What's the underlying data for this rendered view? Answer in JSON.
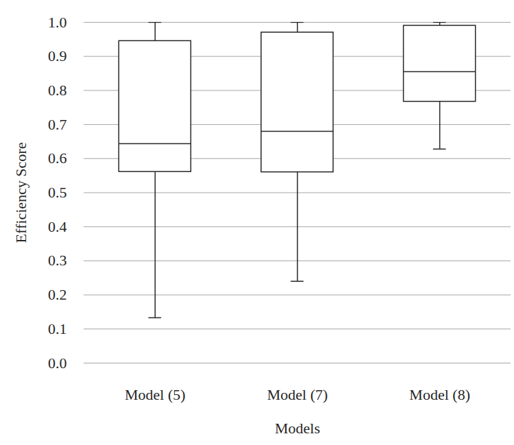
{
  "chart_data": {
    "type": "box",
    "x_label": "Models",
    "y_label": "Efficiency Score",
    "categories": [
      "Model (5)",
      "Model (7)",
      "Model (8)"
    ],
    "min": [
      0.133,
      0.24,
      0.628
    ],
    "q1": [
      0.561,
      0.56,
      0.767
    ],
    "median": [
      0.644,
      0.68,
      0.855
    ],
    "q3": [
      0.945,
      0.97,
      0.99
    ],
    "max": [
      1.0,
      1.0,
      1.0
    ],
    "color": "#262626",
    "ylim": [
      0,
      1
    ],
    "yticks": [
      {
        "value": 0,
        "label": "0.0"
      },
      0.1,
      0.2,
      0.3,
      0.4,
      0.5,
      0.6,
      0.7,
      0.8,
      0.9,
      {
        "value": 1,
        "label": "1.0"
      }
    ],
    "grid": true
  }
}
